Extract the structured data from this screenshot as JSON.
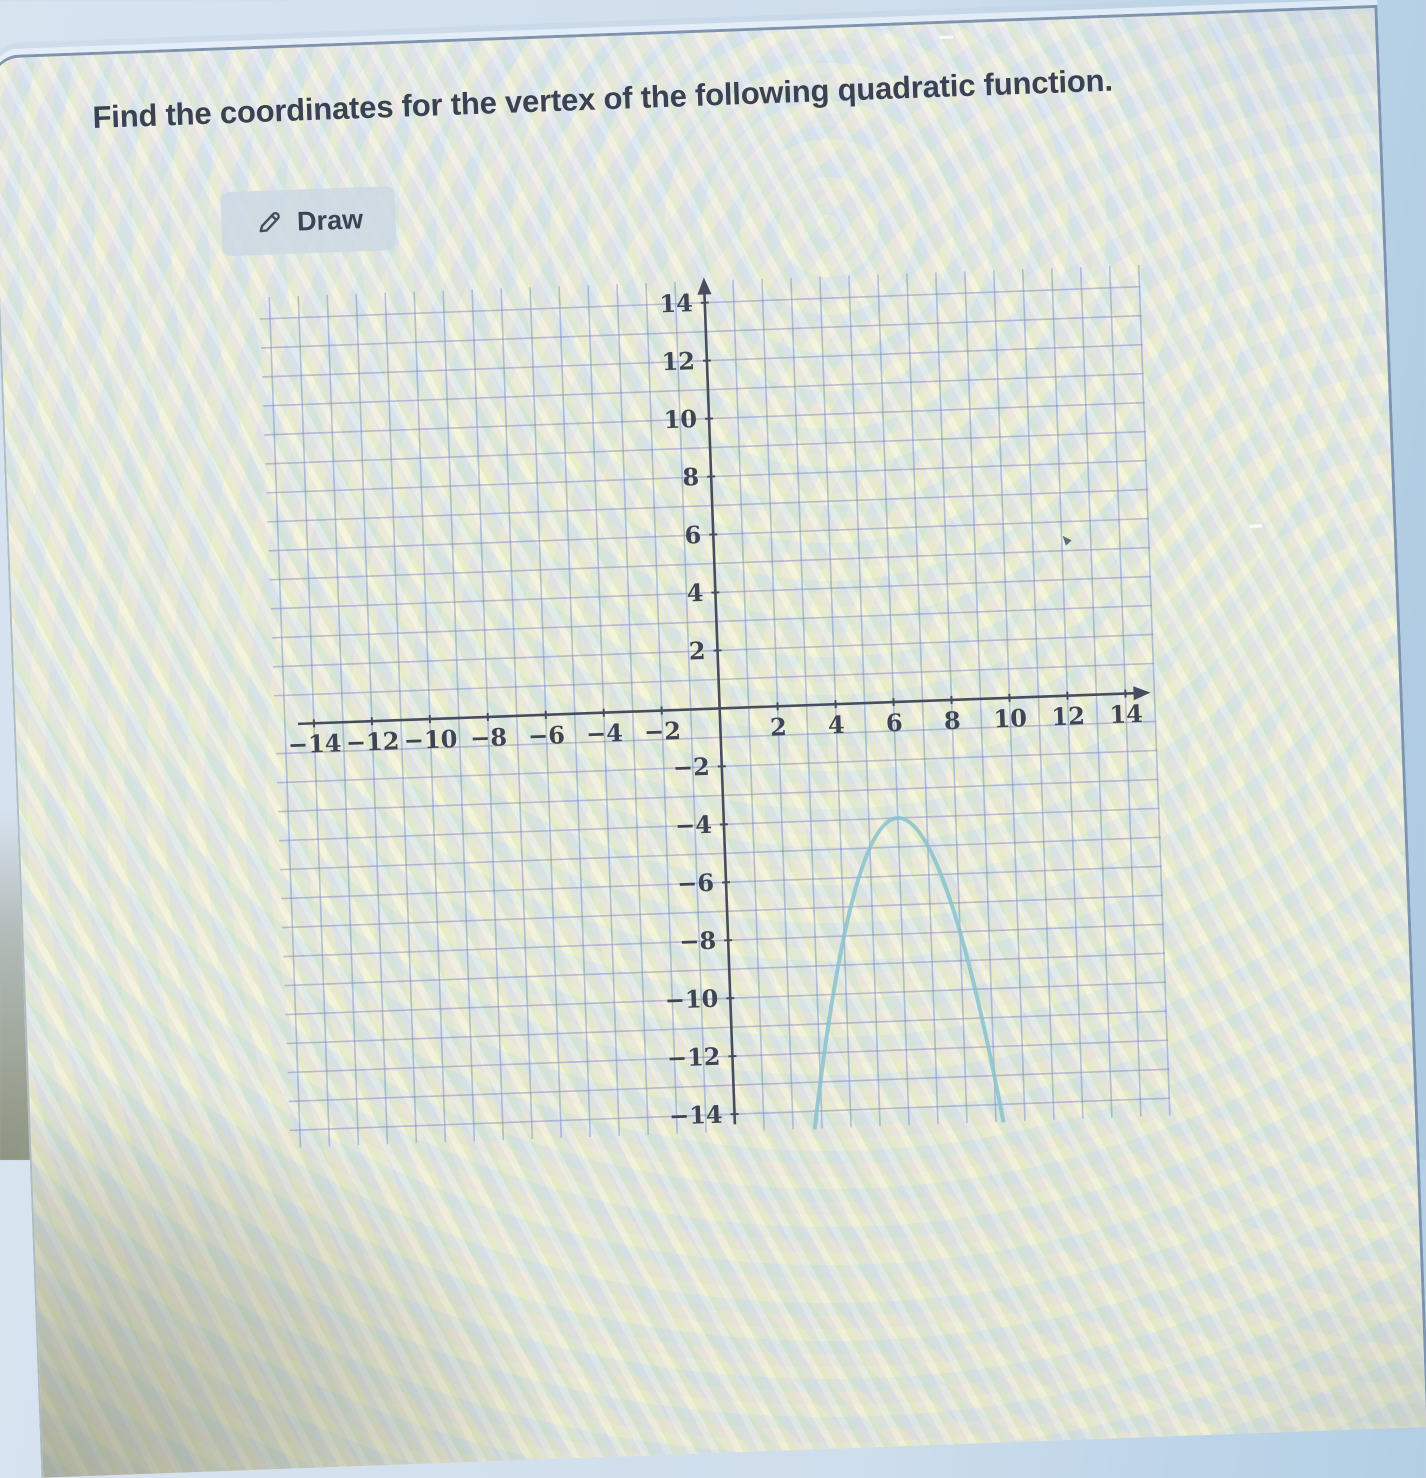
{
  "question": {
    "title": "Find the coordinates for the vertex of the following quadratic function."
  },
  "toolbar": {
    "draw_label": "Draw",
    "draw_icon": "pencil-icon"
  },
  "icons": {
    "draw_button": "pencil-icon",
    "cursor": "cursor-arrow-icon"
  },
  "colors": {
    "title_text": "#3a4152",
    "button_bg": "#cdd8e3",
    "button_text": "#3b4354",
    "axis": "#474d5e",
    "grid_vertical": "rgba(105,135,200,0.45)",
    "grid_horizontal": "rgba(125,125,195,0.45)",
    "curve": "#8ac2cf",
    "tick_text": "#3e4454"
  },
  "chart_data": {
    "type": "line",
    "title": "",
    "xlabel": "",
    "ylabel": "",
    "xlim": [
      -15.4,
      15.1
    ],
    "ylim": [
      -14.7,
      14.9
    ],
    "grid": true,
    "grid_step": 1,
    "tick_step": 2,
    "x_ticks": [
      -14,
      -12,
      -10,
      -8,
      -6,
      -4,
      -2,
      2,
      4,
      6,
      8,
      10,
      12,
      14
    ],
    "y_ticks": [
      -14,
      -12,
      -10,
      -8,
      -6,
      -4,
      -2,
      2,
      4,
      6,
      8,
      10,
      12,
      14
    ],
    "axis_arrows": [
      "up",
      "right"
    ],
    "series": [
      {
        "name": "quadratic",
        "equation": "y = -(x - 6)^2 - 4",
        "vertex": [
          6,
          -4
        ],
        "a": -1,
        "x_range": [
          2.75,
          9.25
        ]
      }
    ]
  }
}
